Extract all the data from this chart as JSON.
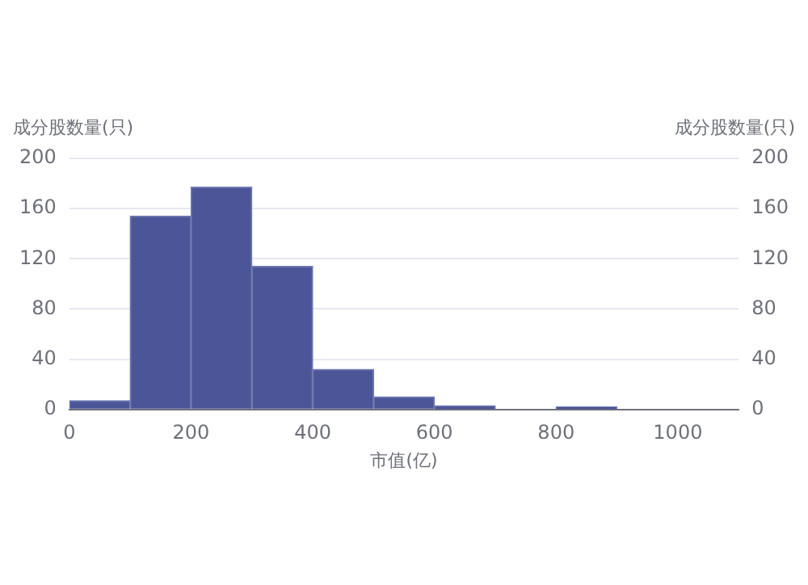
{
  "chart_data": {
    "type": "histogram",
    "xlabel": "市值(亿)",
    "ylabel": "成分股数量(只)",
    "y2label": "成分股数量(只)",
    "bins": [
      0,
      100,
      200,
      300,
      400,
      500,
      600,
      700,
      800,
      900,
      1000,
      1100
    ],
    "values": [
      7,
      154,
      177,
      114,
      32,
      10,
      3,
      0,
      2,
      0,
      0
    ],
    "color": "#4b5597",
    "xlim": [
      0,
      1100
    ],
    "xticks": [
      0,
      200,
      400,
      600,
      800,
      1000
    ],
    "ylim": [
      0,
      200
    ],
    "yticks": [
      0,
      40,
      80,
      120,
      160,
      200
    ],
    "y2lim": [
      0,
      200
    ],
    "y2ticks": [
      0,
      40,
      80,
      120,
      160,
      200
    ],
    "grid": "y",
    "legend": false
  }
}
